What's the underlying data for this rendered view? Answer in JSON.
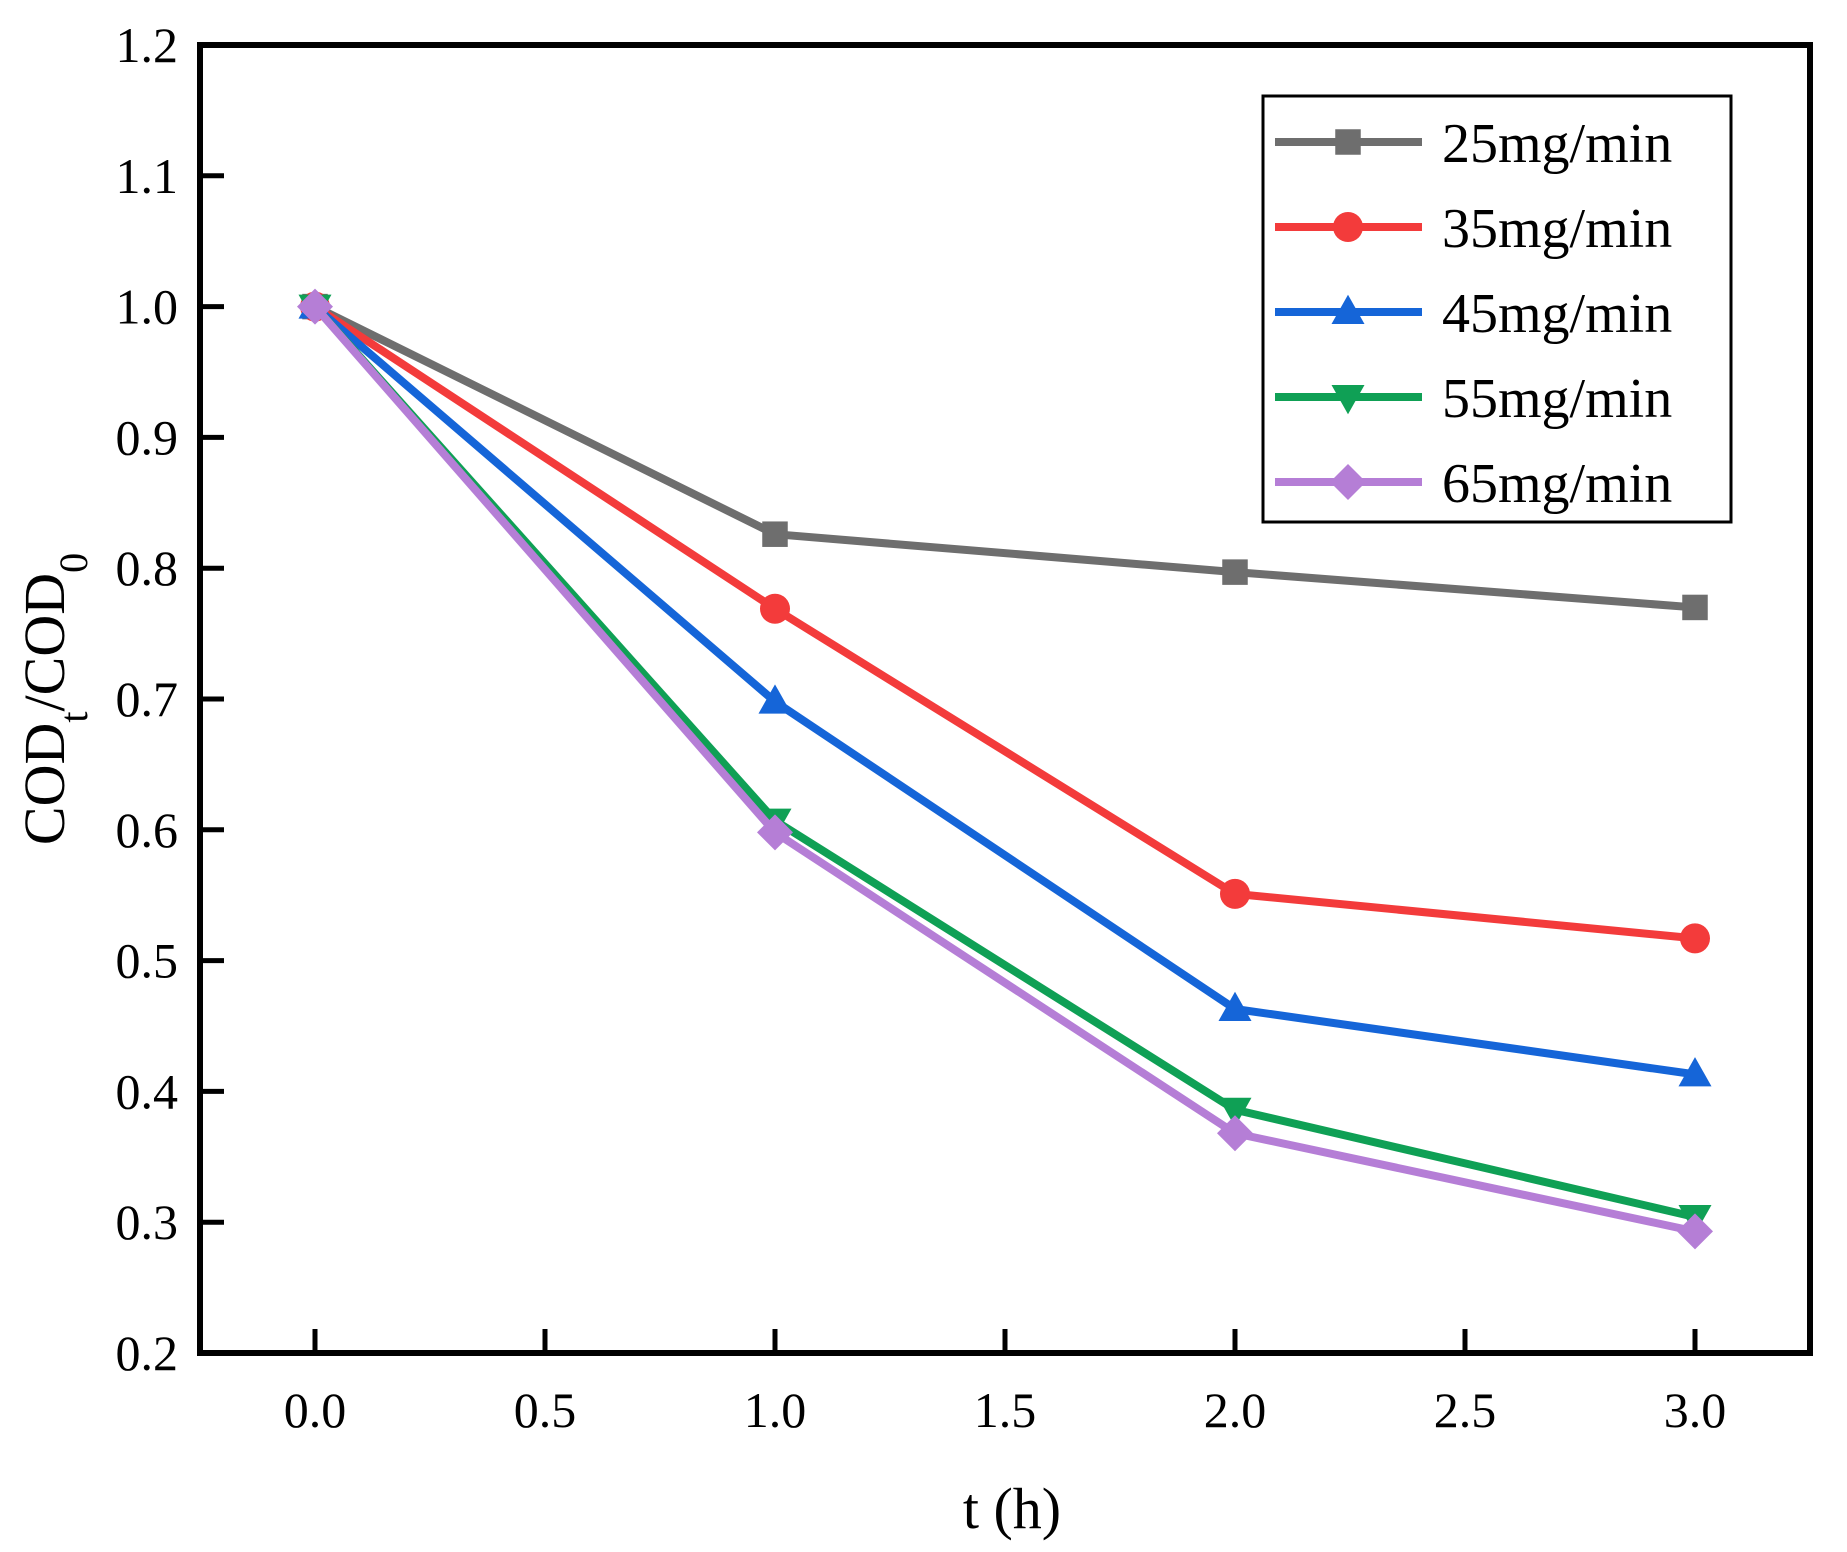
{
  "chart_data": {
    "type": "line",
    "title": "",
    "xlabel": "t (h)",
    "ylabel": {
      "main": "COD",
      "sub1": "t",
      "sep": "/COD",
      "sub2": "0"
    },
    "xlim": [
      -0.25,
      3.25
    ],
    "ylim": [
      0.2,
      1.2
    ],
    "xticks": [
      0.0,
      0.5,
      1.0,
      1.5,
      2.0,
      2.5,
      3.0
    ],
    "xtick_labels": [
      "0.0",
      "0.5",
      "1.0",
      "1.5",
      "2.0",
      "2.5",
      "3.0"
    ],
    "yticks": [
      0.2,
      0.3,
      0.4,
      0.5,
      0.6,
      0.7,
      0.8,
      0.9,
      1.0,
      1.1,
      1.2
    ],
    "ytick_labels": [
      "0.2",
      "0.3",
      "0.4",
      "0.5",
      "0.6",
      "0.7",
      "0.8",
      "0.9",
      "1.0",
      "1.1",
      "1.2"
    ],
    "grid": false,
    "legend_position": "top-right",
    "x": [
      0,
      1,
      2,
      3
    ],
    "series": [
      {
        "name": "25mg/min",
        "marker": "square",
        "color": "#6e6e6e",
        "values": [
          1.0,
          0.826,
          0.797,
          0.77
        ]
      },
      {
        "name": "35mg/min",
        "marker": "circle",
        "color": "#f33b3b",
        "values": [
          1.0,
          0.769,
          0.551,
          0.517
        ]
      },
      {
        "name": "45mg/min",
        "marker": "triangle-up",
        "color": "#1565d8",
        "values": [
          1.0,
          0.698,
          0.463,
          0.413
        ]
      },
      {
        "name": "55mg/min",
        "marker": "triangle-down",
        "color": "#0fa055",
        "values": [
          1.0,
          0.607,
          0.386,
          0.304
        ]
      },
      {
        "name": "65mg/min",
        "marker": "diamond",
        "color": "#b57ed6",
        "values": [
          1.0,
          0.598,
          0.368,
          0.293
        ]
      }
    ]
  }
}
